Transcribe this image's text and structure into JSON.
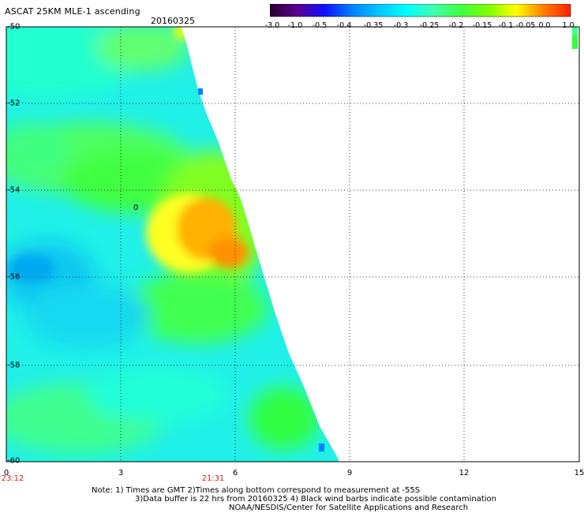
{
  "header": {
    "title": "ASCAT 25KM MLE-1 ascending",
    "date": "20160325"
  },
  "colorbar": {
    "labels": [
      "-3.0",
      "-1.0",
      "-0.5",
      "-0.4",
      "-0.35",
      "-0.3",
      "-0.25",
      "-0.2",
      "-0.15",
      "-0.1",
      "-0.05",
      "0.0",
      "1.0"
    ],
    "colors": [
      "#2a0030",
      "#5a0090",
      "#1010ff",
      "#0080ff",
      "#00c8ff",
      "#00ffff",
      "#40ffb0",
      "#40ff40",
      "#80ff00",
      "#ffff00",
      "#ff8000",
      "#ff2000"
    ]
  },
  "axes": {
    "y_ticks": [
      "-50",
      "-52",
      "-54",
      "-56",
      "-58",
      "-60"
    ],
    "x_ticks": [
      "0",
      "3",
      "6",
      "9",
      "12",
      "15"
    ],
    "time_labels": [
      "23:12",
      "21:31"
    ]
  },
  "contour_label": "0",
  "notes": {
    "line1": "Note: 1) Times are GMT 2)Times along bottom correspond to measurement at -55S",
    "line2": "3)Data buffer is 22 hrs from 20160325 4) Black wind barbs indicate possible contamination",
    "line3": "NOAA/NESDIS/Center for Satellite Applications and Research"
  }
}
